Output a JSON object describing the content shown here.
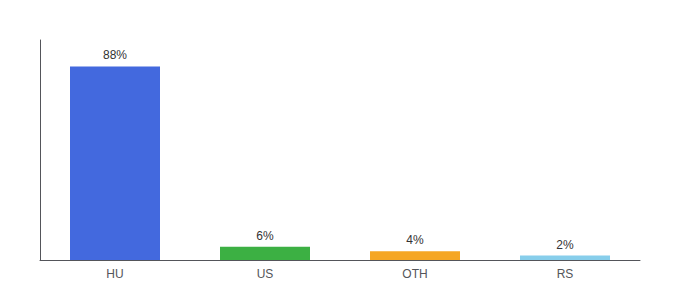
{
  "chart_data": {
    "type": "bar",
    "categories": [
      "HU",
      "US",
      "OTH",
      "RS"
    ],
    "values": [
      88,
      6,
      4,
      2
    ],
    "value_labels": [
      "88%",
      "6%",
      "4%",
      "2%"
    ],
    "colors": [
      "#4369de",
      "#3cb043",
      "#f5a623",
      "#87ceeb"
    ],
    "ylim": [
      0,
      100
    ],
    "tick_labels": "x",
    "grid": false
  }
}
